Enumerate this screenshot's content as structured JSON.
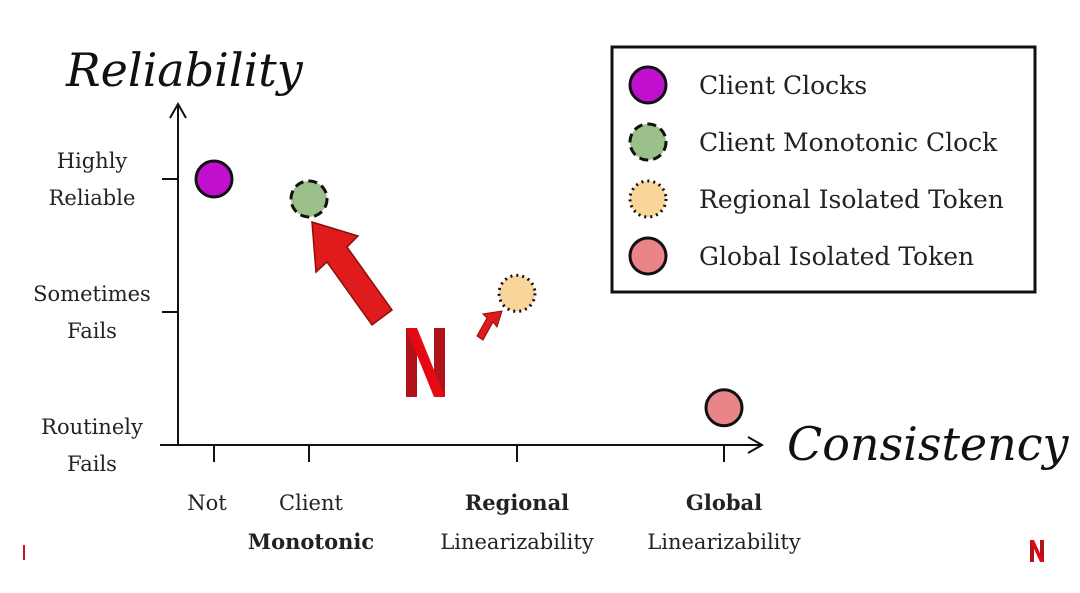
{
  "chart_data": {
    "type": "scatter",
    "xlabel": "Consistency",
    "ylabel": "Reliability",
    "x_categories": [
      {
        "lines": [
          "Not"
        ],
        "bold": [
          false
        ]
      },
      {
        "lines": [
          "Client",
          "Monotonic"
        ],
        "bold": [
          false,
          true
        ]
      },
      {
        "lines": [
          "Regional",
          "Linearizability"
        ],
        "bold": [
          true,
          false
        ]
      },
      {
        "lines": [
          "Global",
          "Linearizability"
        ],
        "bold": [
          true,
          false
        ]
      }
    ],
    "y_categories": [
      {
        "lines": [
          "Routinely",
          "Fails"
        ]
      },
      {
        "lines": [
          "Sometimes",
          "Fails"
        ]
      },
      {
        "lines": [
          "Highly",
          "Reliable"
        ]
      }
    ],
    "series": [
      {
        "name": "Client Clocks",
        "x": 0,
        "y": 2,
        "color": "#c10fd0",
        "stroke": "solid"
      },
      {
        "name": "Client Monotonic Clock",
        "x": 1,
        "y": 1.85,
        "color": "#9cc08a",
        "stroke": "dashed"
      },
      {
        "name": "Regional Isolated Token",
        "x": 2,
        "y": 1.14,
        "color": "#f9d49b",
        "stroke": "dotted"
      },
      {
        "name": "Global Isolated Token",
        "x": 3,
        "y": 0.28,
        "color": "#e98589",
        "stroke": "solid"
      }
    ],
    "legend_position": "top-right",
    "grid": false
  },
  "colors": {
    "arrow": "#e01b1b",
    "brand": "#c4161c"
  },
  "icons": {
    "center_logo": "netflix-logo",
    "corner_logo": "netflix-logo"
  }
}
